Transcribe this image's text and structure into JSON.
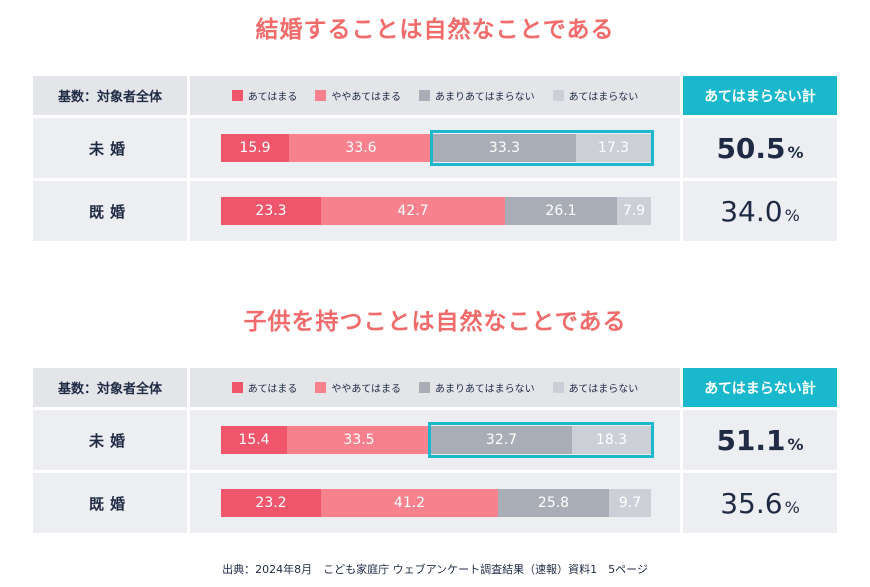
{
  "colors": {
    "seg1": "#f0566b",
    "seg2": "#f7818d",
    "seg3": "#a9adb5",
    "seg4": "#ccd0d6",
    "accent": "#1ab8cc",
    "title": "#f26b6b"
  },
  "legend": [
    "あてはまる",
    "ややあてはまる",
    "あまりあてはまらない",
    "あてはまらない"
  ],
  "base_label": "基数：対象者全体",
  "total_header": "あてはまらない計",
  "source": "出典：2024年8月　こども家庭庁 ウェブアンケート調査結果（速報）資料1　5ページ",
  "charts": [
    {
      "title": "結婚することは自然なことである",
      "rows": [
        {
          "label": "未婚",
          "values": [
            15.9,
            33.6,
            33.3,
            17.3
          ],
          "value_labels": [
            "15.9",
            "33.6",
            "33.3",
            "17.3"
          ],
          "total": "50.5",
          "pct": "%",
          "emphasis": true
        },
        {
          "label": "既婚",
          "values": [
            23.3,
            42.7,
            26.1,
            7.9
          ],
          "value_labels": [
            "23.3",
            "42.7",
            "26.1",
            "7.9"
          ],
          "total": "34.0",
          "pct": "%",
          "emphasis": false
        }
      ]
    },
    {
      "title": "子供を持つことは自然なことである",
      "rows": [
        {
          "label": "未婚",
          "values": [
            15.4,
            33.5,
            32.7,
            18.3
          ],
          "value_labels": [
            "15.4",
            "33.5",
            "32.7",
            "18.3"
          ],
          "total": "51.1",
          "pct": "%",
          "emphasis": true
        },
        {
          "label": "既婚",
          "values": [
            23.2,
            41.2,
            25.8,
            9.7
          ],
          "value_labels": [
            "23.2",
            "41.2",
            "25.8",
            "9.7"
          ],
          "total": "35.6",
          "pct": "%",
          "emphasis": false
        }
      ]
    }
  ],
  "chart_data": [
    {
      "type": "bar",
      "title": "結婚することは自然なことである",
      "categories": [
        "未婚",
        "既婚"
      ],
      "series": [
        {
          "name": "あてはまる",
          "values": [
            15.9,
            23.3
          ]
        },
        {
          "name": "ややあてはまる",
          "values": [
            33.6,
            42.7
          ]
        },
        {
          "name": "あまりあてはまらない",
          "values": [
            33.3,
            26.1
          ]
        },
        {
          "name": "あてはまらない",
          "values": [
            17.3,
            7.9
          ]
        }
      ],
      "totals": {
        "name": "あてはまらない計",
        "values": [
          50.5,
          34.0
        ]
      },
      "stacked": true,
      "orientation": "horizontal"
    },
    {
      "type": "bar",
      "title": "子供を持つことは自然なことである",
      "categories": [
        "未婚",
        "既婚"
      ],
      "series": [
        {
          "name": "あてはまる",
          "values": [
            15.4,
            23.2
          ]
        },
        {
          "name": "ややあてはまる",
          "values": [
            33.5,
            41.2
          ]
        },
        {
          "name": "あまりあてはまらない",
          "values": [
            32.7,
            25.8
          ]
        },
        {
          "name": "あてはまらない",
          "values": [
            18.3,
            9.7
          ]
        }
      ],
      "totals": {
        "name": "あてはまらない計",
        "values": [
          51.1,
          35.6
        ]
      },
      "stacked": true,
      "orientation": "horizontal"
    }
  ]
}
